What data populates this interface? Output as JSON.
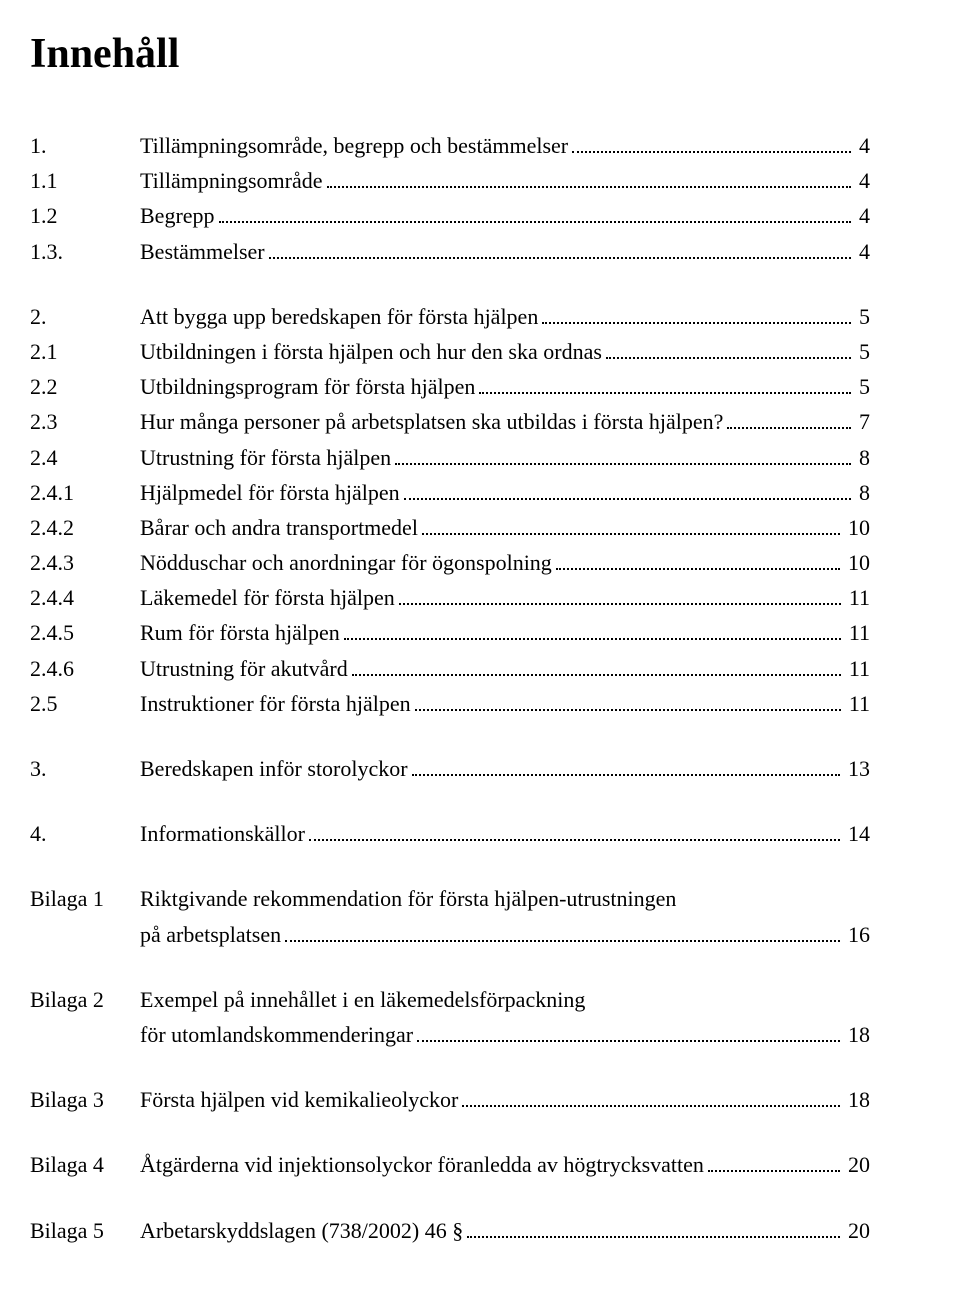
{
  "document": {
    "title": "Innehåll",
    "title_fontsize": 42,
    "body_fontsize": 22,
    "text_color": "#000000",
    "background_color": "#ffffff",
    "font_family": "Times New Roman"
  },
  "blocks": [
    {
      "entries": [
        {
          "num": "1.",
          "title": "Tillämpningsområde, begrepp och bestämmelser",
          "page": "4"
        },
        {
          "num": "1.1",
          "title": "Tillämpningsområde",
          "page": "4"
        },
        {
          "num": "1.2",
          "title": "Begrepp",
          "page": "4"
        },
        {
          "num": "1.3.",
          "title": "Bestämmelser",
          "page": "4"
        }
      ]
    },
    {
      "entries": [
        {
          "num": "2.",
          "title": "Att bygga upp beredskapen för första hjälpen",
          "page": "5"
        },
        {
          "num": "2.1",
          "title": "Utbildningen i första hjälpen och hur den ska ordnas",
          "page": "5"
        },
        {
          "num": "2.2",
          "title": "Utbildningsprogram för första hjälpen",
          "page": "5"
        },
        {
          "num": "2.3",
          "title": "Hur många personer på arbetsplatsen ska utbildas i första hjälpen?",
          "page": "7"
        },
        {
          "num": "2.4",
          "title": "Utrustning för första hjälpen",
          "page": "8"
        },
        {
          "num": "2.4.1",
          "title": "Hjälpmedel för första hjälpen",
          "page": "8"
        },
        {
          "num": "2.4.2",
          "title": "Bårar och andra transportmedel",
          "page": "10"
        },
        {
          "num": "2.4.3",
          "title": "Nödduschar och anordningar för ögonspolning",
          "page": "10"
        },
        {
          "num": "2.4.4",
          "title": "Läkemedel för första hjälpen",
          "page": "11"
        },
        {
          "num": "2.4.5",
          "title": "Rum för första hjälpen",
          "page": "11"
        },
        {
          "num": "2.4.6",
          "title": "Utrustning för akutvård",
          "page": "11"
        },
        {
          "num": "2.5",
          "title": "Instruktioner för första hjälpen",
          "page": "11"
        }
      ]
    },
    {
      "entries": [
        {
          "num": "3.",
          "title": "Beredskapen inför storolyckor",
          "page": "13"
        }
      ]
    },
    {
      "entries": [
        {
          "num": "4.",
          "title": "Informationskällor",
          "page": "14"
        }
      ]
    },
    {
      "entries": [
        {
          "num": "Bilaga 1",
          "title": "Riktgivande rekommendation för första hjälpen-utrustningen",
          "cont": "på arbetsplatsen",
          "page": "16"
        }
      ]
    },
    {
      "entries": [
        {
          "num": "Bilaga 2",
          "title": "Exempel på innehållet i en läkemedelsförpackning",
          "cont": "för utomlandskommenderingar",
          "page": "18"
        }
      ]
    },
    {
      "entries": [
        {
          "num": "Bilaga 3",
          "title": "Första hjälpen vid kemikalieolyckor",
          "page": "18"
        }
      ]
    },
    {
      "entries": [
        {
          "num": "Bilaga 4",
          "title": "Åtgärderna vid injektionsolyckor föranledda av högtrycksvatten",
          "page": "20"
        }
      ]
    },
    {
      "entries": [
        {
          "num": "Bilaga 5",
          "title": "Arbetarskyddslagen (738/2002) 46 §",
          "page": "20"
        }
      ]
    }
  ]
}
